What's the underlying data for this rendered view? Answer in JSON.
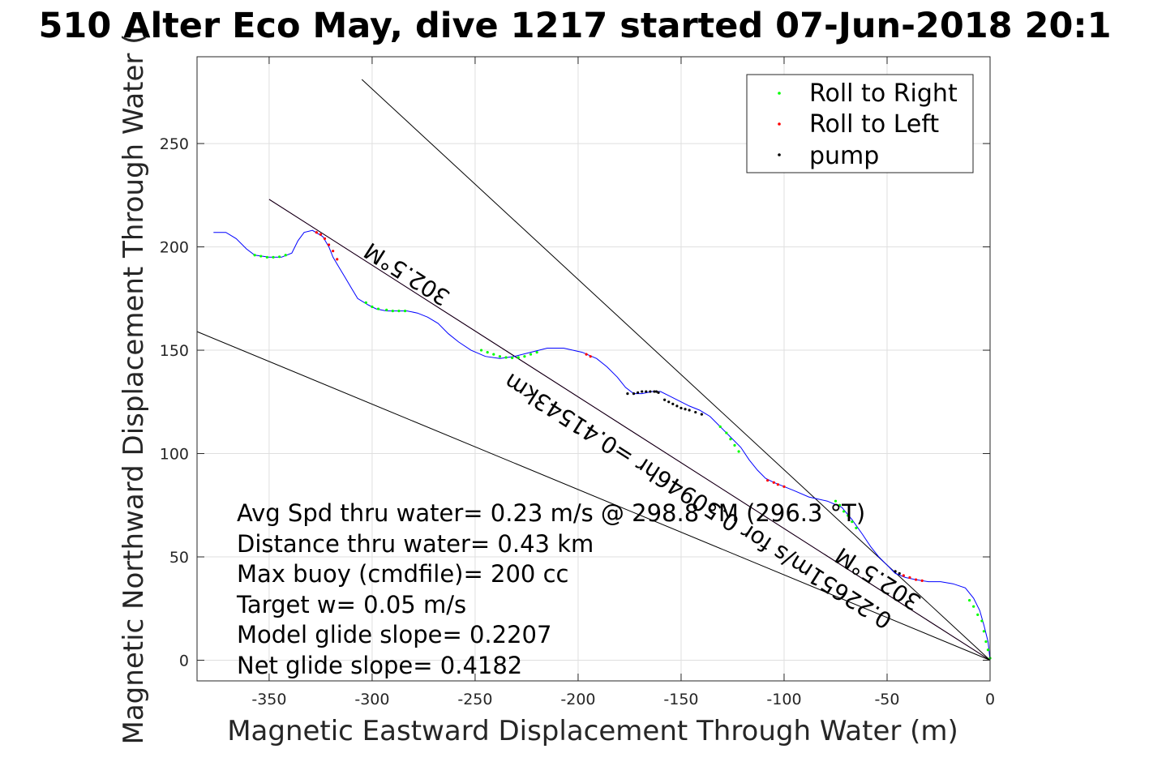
{
  "chart_data": {
    "type": "line",
    "title": "510 Alter Eco May, dive 1217 started 07-Jun-2018 20:1",
    "xlabel": "Magnetic Eastward Displacement Through Water (m)",
    "ylabel": "Magnetic Northward Displacement Through Water (",
    "xlim": [
      -385,
      0
    ],
    "ylim": [
      -10,
      292
    ],
    "xticks": [
      -350,
      -300,
      -250,
      -200,
      -150,
      -100,
      -50,
      0
    ],
    "yticks": [
      0,
      50,
      100,
      150,
      200,
      250
    ],
    "grid": true,
    "legend": {
      "placement": "top-right",
      "entries": [
        {
          "label": "Roll to Right",
          "color": "#00ff00"
        },
        {
          "label": "Roll to Left",
          "color": "#ff0000"
        },
        {
          "label": "pump",
          "color": "#000000"
        }
      ]
    },
    "track": {
      "name": "glider track",
      "color": "#0000ff",
      "x": [
        -377,
        -371,
        -366,
        -361,
        -357,
        -350,
        -344,
        -339,
        -336,
        -333,
        -329,
        -324,
        -321,
        -319,
        -316,
        -313,
        -310,
        -307,
        -302,
        -298,
        -293,
        -288,
        -283,
        -278,
        -273,
        -268,
        -263,
        -258,
        -252,
        -245,
        -238,
        -231,
        -223,
        -215,
        -207,
        -198,
        -191,
        -186,
        -181,
        -177,
        -173,
        -169,
        -164,
        -160,
        -156,
        -150,
        -146,
        -141,
        -136,
        -131,
        -126,
        -121,
        -117,
        -113,
        -109,
        -105,
        -100,
        -95,
        -88,
        -79,
        -72,
        -67,
        -62,
        -58,
        -54,
        -50,
        -46,
        -41,
        -36,
        -30,
        -24,
        -18,
        -12,
        -8,
        -5,
        -3,
        -1,
        0
      ],
      "y": [
        207,
        207,
        204,
        199,
        196,
        195,
        195,
        197,
        203,
        207,
        208,
        205,
        200,
        195,
        190,
        185,
        180,
        175,
        172,
        170,
        169,
        169,
        169,
        168,
        166,
        163,
        158,
        154,
        150,
        147,
        146,
        147,
        149,
        151,
        151,
        149,
        146,
        142,
        137,
        132,
        129,
        129,
        130,
        130,
        128,
        125,
        123,
        121,
        118,
        113,
        108,
        103,
        97,
        92,
        88,
        86,
        84,
        82,
        79,
        77,
        74,
        68,
        61,
        55,
        50,
        46,
        42,
        40,
        39,
        38,
        38,
        37,
        35,
        30,
        24,
        17,
        9,
        0
      ]
    },
    "reference_lines": [
      {
        "name": "heading-302.5M-line",
        "color": "#cc00cc",
        "x": [
          -350,
          0
        ],
        "y": [
          223,
          0
        ]
      },
      {
        "name": "envelope-upper",
        "color": "#000000",
        "x": [
          -305,
          0
        ],
        "y": [
          281,
          0
        ]
      },
      {
        "name": "envelope-lower",
        "color": "#000000",
        "x": [
          -385,
          0
        ],
        "y": [
          159,
          0
        ]
      },
      {
        "name": "heading-302.5M-line-black",
        "color": "#000000",
        "x": [
          -350,
          0
        ],
        "y": [
          223,
          0
        ]
      }
    ],
    "roll_right_points": {
      "x": [
        -357,
        -354,
        -351,
        -348,
        -345,
        -342,
        -303,
        -300,
        -297,
        -293,
        -290,
        -287,
        -284,
        -247,
        -244,
        -241,
        -238,
        -235,
        -232,
        -229,
        -226,
        -223,
        -220,
        -131,
        -128,
        -126,
        -124,
        -122,
        -75,
        -73,
        -71,
        -69,
        -67,
        -65,
        -10,
        -8,
        -6,
        -4,
        -3,
        -2,
        -1,
        0
      ],
      "y": [
        196,
        195.5,
        195,
        195,
        195.2,
        196,
        173,
        171,
        170,
        169.5,
        169,
        169,
        169,
        150,
        149,
        148,
        147,
        146.5,
        146.3,
        146.5,
        147,
        148,
        149,
        113,
        110,
        107,
        104,
        101,
        77,
        75,
        72,
        70,
        67,
        64,
        29,
        26,
        22,
        19,
        14,
        9,
        5,
        1
      ]
    },
    "roll_left_points": {
      "x": [
        -327,
        -325,
        -323,
        -321,
        -319,
        -317,
        -196,
        -194,
        -108,
        -105,
        -103,
        -100,
        -42,
        -39,
        -36,
        -33
      ],
      "y": [
        207,
        206,
        204,
        201,
        198,
        194,
        148,
        147,
        87,
        86,
        85,
        84,
        41,
        40,
        39,
        38.5
      ]
    },
    "pump_points": {
      "x": [
        -176,
        -173,
        -171,
        -169,
        -167,
        -165,
        -163,
        -162,
        -161,
        -158,
        -156,
        -154,
        -152,
        -150,
        -148,
        -146,
        -143,
        -140,
        -46,
        -44
      ],
      "y": [
        129,
        129,
        129.5,
        130,
        130,
        130,
        130,
        130,
        129.5,
        126,
        125,
        124,
        123,
        122,
        121.5,
        121,
        120,
        119,
        43,
        42
      ]
    },
    "annotations": {
      "lines": [
        "Avg Spd thru water=  0.23 m/s @ 298.8 °M (296.3 °T)",
        "Distance thru water=  0.43 km",
        "Max buoy (cmdfile)= 200 cc",
        "Target w= 0.05 m/s",
        "Model glide slope= 0.2207",
        "Net glide slope= 0.4182"
      ],
      "heading_label_top": "302.5°M",
      "heading_label_right": "302.5°M",
      "speed_label": "0.22651m/s for 0.50946hr =0.41543km"
    }
  }
}
